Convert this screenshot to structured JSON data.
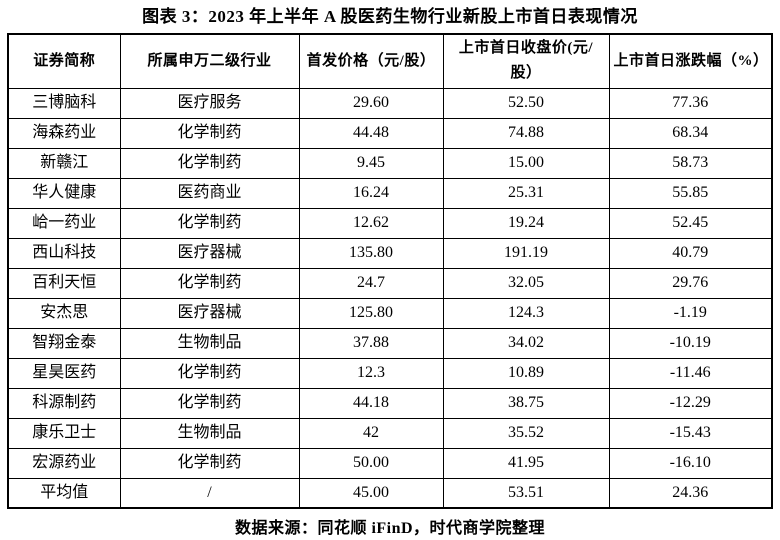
{
  "title": "图表 3：2023 年上半年 A 股医药生物行业新股上市首日表现情况",
  "table": {
    "columns": [
      "证券简称",
      "所属申万二级行业",
      "首发价格（元/股）",
      "上市首日收盘价(元/股）",
      "上市首日涨跌幅（%）"
    ],
    "rows": [
      [
        "三博脑科",
        "医疗服务",
        "29.60",
        "52.50",
        "77.36"
      ],
      [
        "海森药业",
        "化学制药",
        "44.48",
        "74.88",
        "68.34"
      ],
      [
        "新赣江",
        "化学制药",
        "9.45",
        "15.00",
        "58.73"
      ],
      [
        "华人健康",
        "医药商业",
        "16.24",
        "25.31",
        "55.85"
      ],
      [
        "峆一药业",
        "化学制药",
        "12.62",
        "19.24",
        "52.45"
      ],
      [
        "西山科技",
        "医疗器械",
        "135.80",
        "191.19",
        "40.79"
      ],
      [
        "百利天恒",
        "化学制药",
        "24.7",
        "32.05",
        "29.76"
      ],
      [
        "安杰思",
        "医疗器械",
        "125.80",
        "124.3",
        "-1.19"
      ],
      [
        "智翔金泰",
        "生物制品",
        "37.88",
        "34.02",
        "-10.19"
      ],
      [
        "星昊医药",
        "化学制药",
        "12.3",
        "10.89",
        "-11.46"
      ],
      [
        "科源制药",
        "化学制药",
        "44.18",
        "38.75",
        "-12.29"
      ],
      [
        "康乐卫士",
        "生物制品",
        "42",
        "35.52",
        "-15.43"
      ],
      [
        "宏源药业",
        "化学制药",
        "50.00",
        "41.95",
        "-16.10"
      ],
      [
        "平均值",
        "/",
        "45.00",
        "53.51",
        "24.36"
      ]
    ]
  },
  "footer": "数据来源：同花顺 iFinD，时代商学院整理"
}
